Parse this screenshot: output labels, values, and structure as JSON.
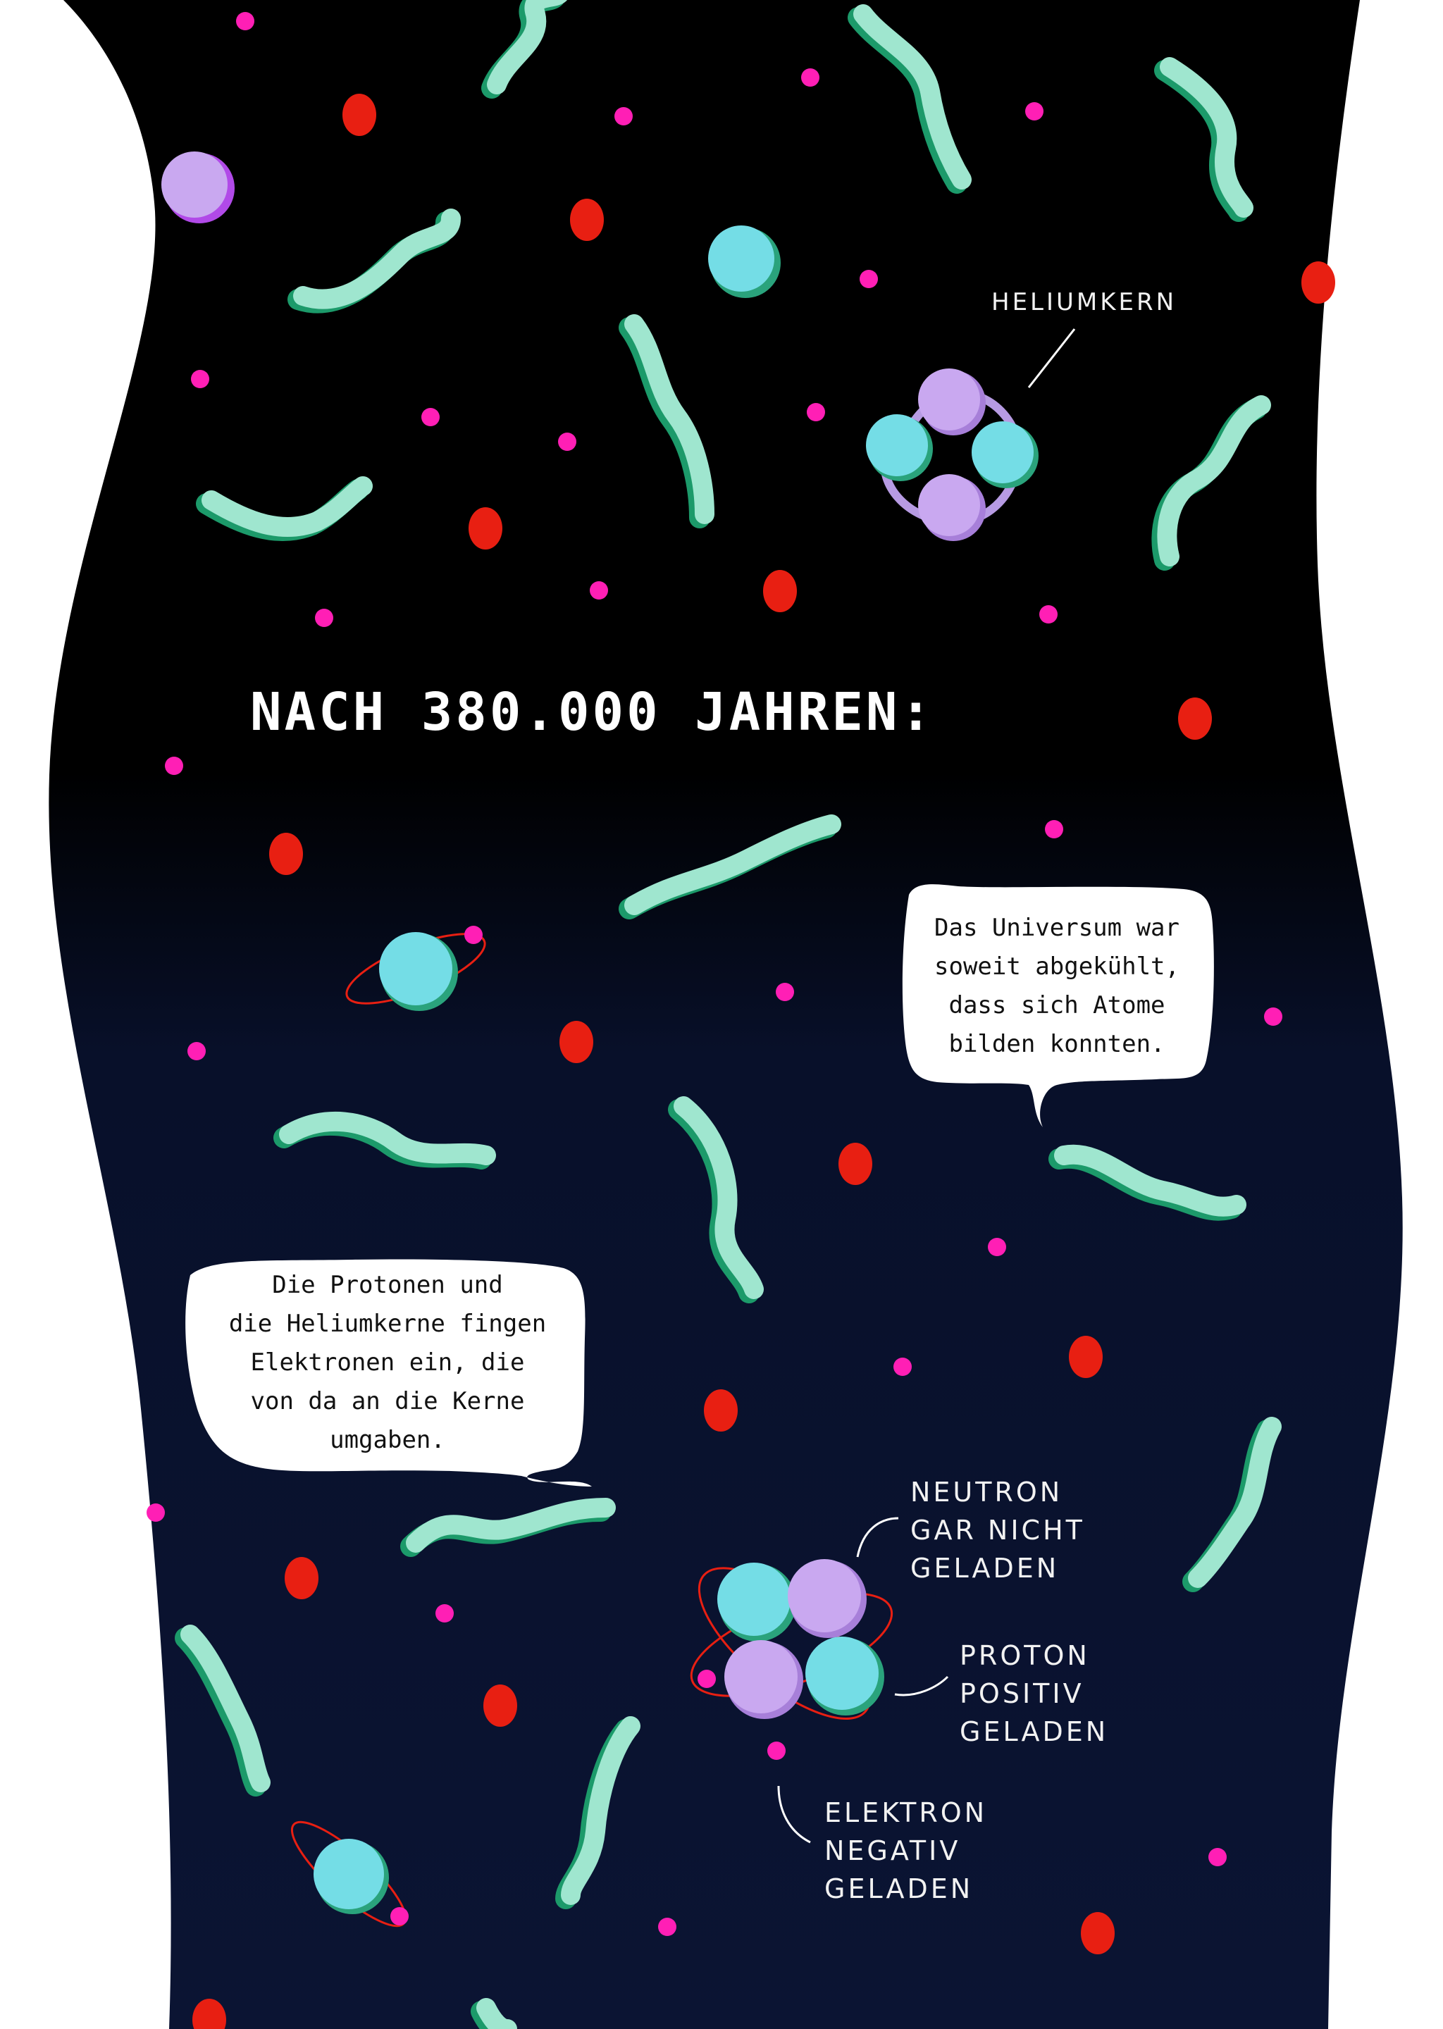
{
  "heading": "NACH 380.000 JAHREN:",
  "labels": {
    "helium_nucleus": "HELIUMKERN",
    "neutron": [
      "NEUTRON",
      "GAR NICHT",
      "GELADEN"
    ],
    "proton": [
      "PROTON",
      "POSITIV",
      "GELADEN"
    ],
    "electron": [
      "ELEKTRON",
      "NEGATIV",
      "GELADEN"
    ]
  },
  "speech_bubbles": {
    "top_right": [
      "Das Universum war",
      "soweit abgekühlt,",
      "dass sich Atome",
      "bilden konnten."
    ],
    "left": [
      "Die Protonen und",
      "die Heliumkerne fingen",
      "Elektronen ein, die",
      "von da an die Kerne",
      "umgaben."
    ]
  },
  "colors": {
    "page_background": "#ffffff",
    "space_top": "#000000",
    "space_bottom": "#0b1433",
    "worm": "#9fe6cf",
    "worm_shadow": "#1c9a6a",
    "electron": "#ff1fb5",
    "photon": "#e81f12",
    "proton": "#74dde6",
    "neutron": "#c9a8f0",
    "label_text": "#f2f2f2"
  }
}
